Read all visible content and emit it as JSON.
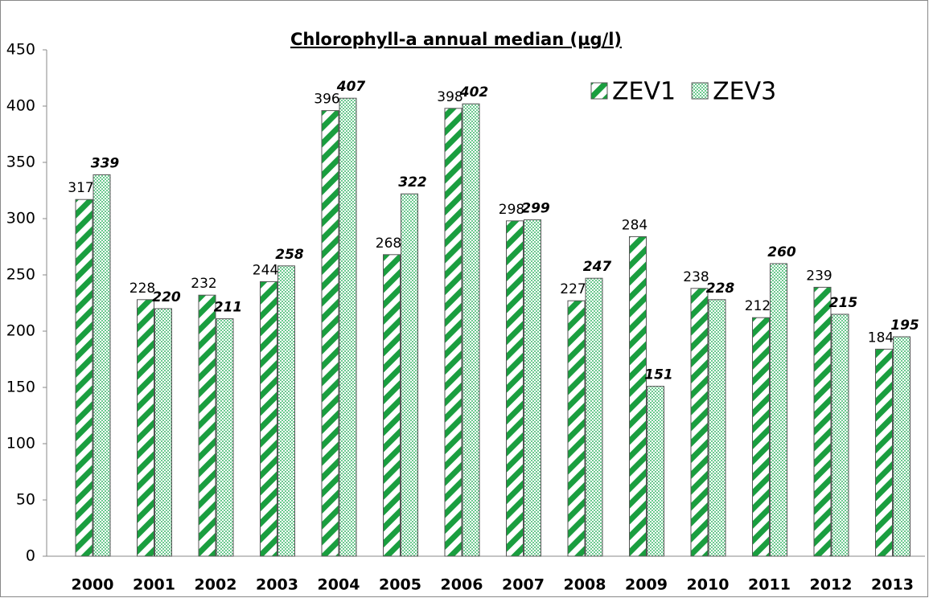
{
  "chart_data": {
    "type": "bar",
    "title": "Chlorophyll-a annual median (µg/l)",
    "categories": [
      "2000",
      "2001",
      "2002",
      "2003",
      "2004",
      "2005",
      "2006",
      "2007",
      "2008",
      "2009",
      "2010",
      "2011",
      "2012",
      "2013"
    ],
    "series": [
      {
        "name": "ZEV1",
        "color": "#1a9e3f",
        "values": [
          317,
          228,
          232,
          244,
          396,
          268,
          398,
          298,
          227,
          284,
          238,
          212,
          239,
          184
        ]
      },
      {
        "name": "ZEV3",
        "color": "#6cc98f",
        "values": [
          339,
          220,
          211,
          258,
          407,
          322,
          402,
          299,
          247,
          151,
          228,
          260,
          215,
          195
        ]
      }
    ],
    "ylim": [
      0,
      450
    ],
    "yticks": [
      0,
      50,
      100,
      150,
      200,
      250,
      300,
      350,
      400,
      450
    ],
    "grid": false,
    "legend": "top-right"
  }
}
